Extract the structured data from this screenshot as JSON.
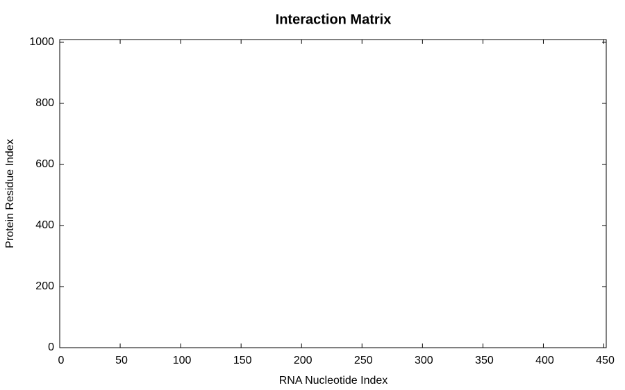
{
  "chart_data": {
    "type": "heatmap",
    "title": "Interaction Matrix",
    "x_label": "RNA Nucleotide Index",
    "y_label": "Protein Residue Index",
    "xlim": [
      0,
      452
    ],
    "ylim": [
      0,
      1009
    ],
    "xticks": [
      0,
      50,
      100,
      150,
      200,
      250,
      300,
      350,
      400,
      450
    ],
    "yticks": [
      0,
      200,
      400,
      600,
      800,
      1000
    ],
    "grid": false
  }
}
